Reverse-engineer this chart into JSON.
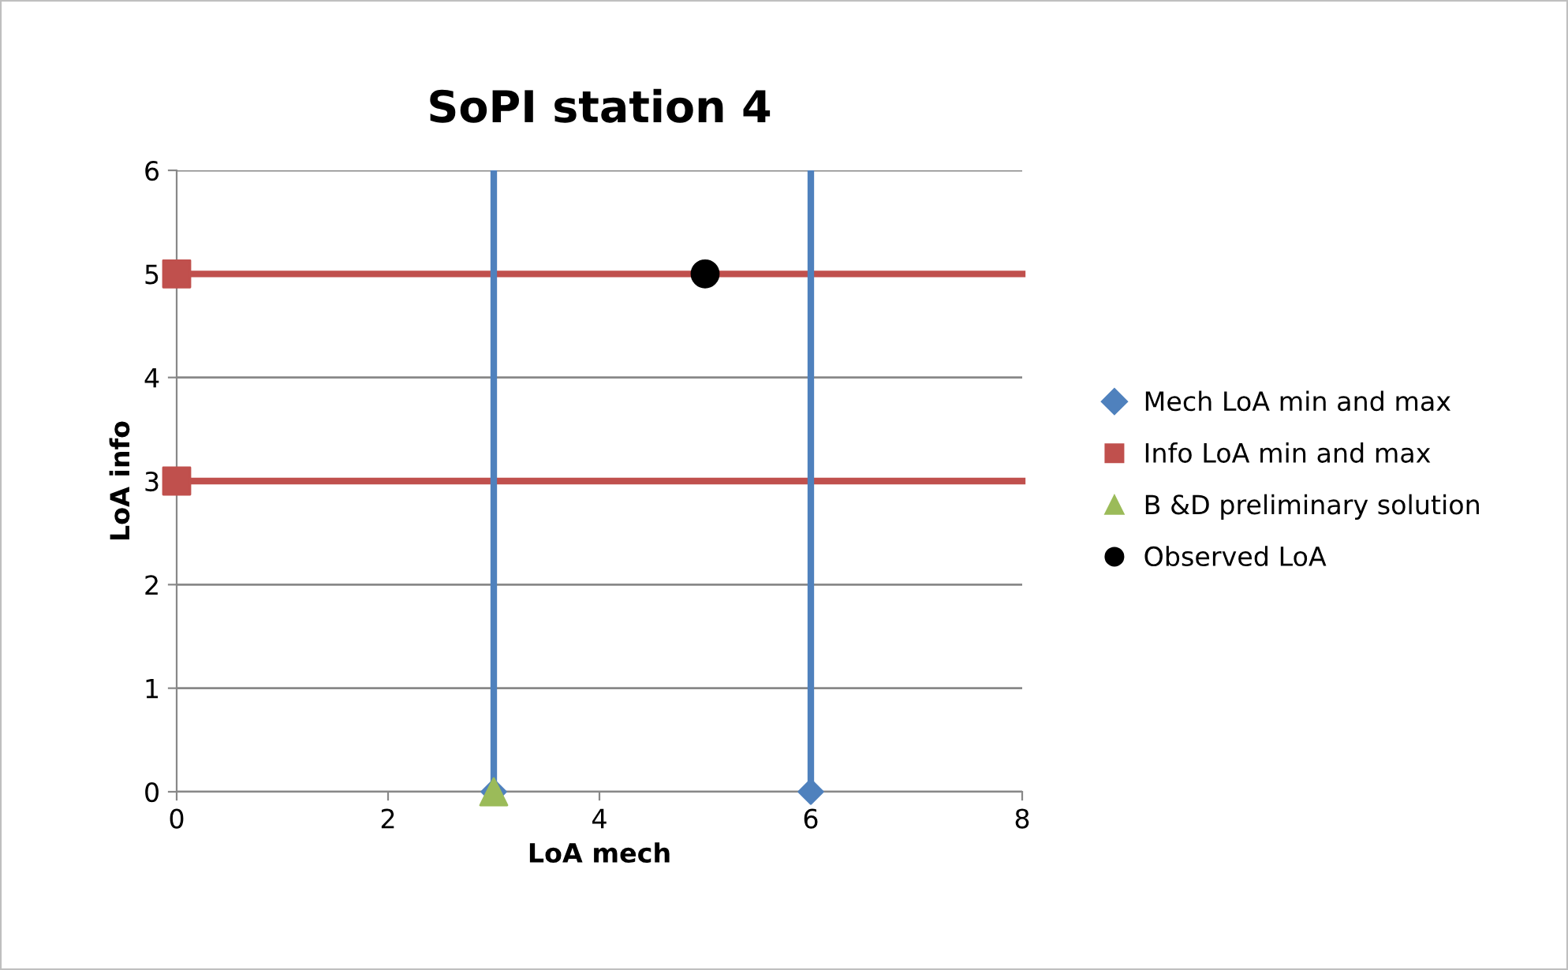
{
  "chart_data": {
    "type": "scatter",
    "title": "SoPI station 4",
    "xlabel": "LoA mech",
    "ylabel": "LoA info",
    "xlim": [
      0,
      8
    ],
    "xticks": [
      0,
      2,
      4,
      6,
      8
    ],
    "ylim": [
      0,
      6
    ],
    "yticks": [
      0,
      1,
      2,
      3,
      4,
      5,
      6
    ],
    "grid": "y",
    "legend": "right",
    "series": [
      {
        "name": "Mech LoA min and max",
        "color": "#4f81bd",
        "marker": "diamond",
        "x": [
          3,
          6
        ],
        "values": [
          0,
          0
        ],
        "errors": [
          [
            0,
            6
          ],
          [
            0,
            6
          ]
        ]
      },
      {
        "name": "Info LoA min and max",
        "color": "#c0504d",
        "marker": "square",
        "x": [
          0,
          0
        ],
        "values": [
          3,
          5
        ]
      },
      {
        "name": "B &D preliminary solution",
        "color": "#9bbb59",
        "marker": "triangle",
        "x": [
          3
        ],
        "values": [
          0
        ]
      },
      {
        "name": "Observed LoA",
        "color": "#000000",
        "marker": "circle",
        "x": [
          5
        ],
        "values": [
          5
        ]
      },
      {
        "type": "line",
        "color": "#c0504d",
        "line_style": "solid",
        "marker": "none",
        "x": [
          0,
          8
        ],
        "values": [
          3,
          3
        ]
      },
      {
        "type": "line",
        "color": "#c0504d",
        "line_style": "solid",
        "marker": "none",
        "x": [
          0,
          8
        ],
        "values": [
          5,
          5
        ]
      }
    ]
  }
}
